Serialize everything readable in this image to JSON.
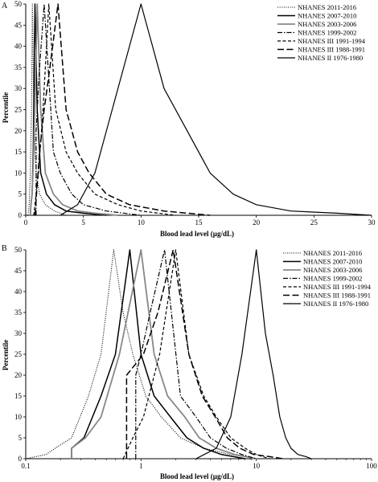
{
  "chart_data": [
    {
      "type": "line",
      "panel_label": "A",
      "xscale": "linear",
      "xlim": [
        0,
        30
      ],
      "ylim": [
        0,
        50
      ],
      "xticks": [
        0,
        5,
        10,
        15,
        20,
        25,
        30
      ],
      "yticks": [
        0,
        5,
        10,
        15,
        20,
        25,
        30,
        35,
        40,
        45,
        50
      ],
      "xtick_labels": [
        "0",
        "5",
        "10",
        "15",
        "20",
        "25",
        "30"
      ],
      "ytick_labels": [
        "0",
        "5",
        "10",
        "15",
        "20",
        "25",
        "30",
        "35",
        "40",
        "45",
        "50"
      ],
      "xlabel": "Blood lead level (µg/dL)",
      "ylabel": "Percentile",
      "legend_position": "top-right",
      "series": [
        {
          "name": "NHANES 2011-2016",
          "color": "#000000",
          "dash": "dotted",
          "width": 1.1,
          "x": [
            0.2,
            0.3,
            0.4,
            0.5,
            0.58,
            0.7,
            0.9,
            1.2,
            1.7,
            2.5,
            3.5
          ],
          "y": [
            0,
            2.5,
            10,
            25,
            50,
            25,
            10,
            5,
            2.5,
            1,
            0
          ]
        },
        {
          "name": "NHANES 2007-2010",
          "color": "#000000",
          "dash": "solid",
          "width": 1.5,
          "x": [
            0.4,
            0.45,
            0.55,
            0.65,
            0.8,
            1.0,
            1.3,
            1.8,
            2.5,
            3.5,
            5,
            7
          ],
          "y": [
            0,
            2.5,
            5,
            15,
            50,
            25,
            10,
            5,
            2.5,
            1,
            0.5,
            0
          ]
        },
        {
          "name": "NHANES 2003-2006",
          "color": "#888888",
          "dash": "solid",
          "width": 1.8,
          "x": [
            0.4,
            0.45,
            0.55,
            0.7,
            1.0,
            1.3,
            1.7,
            2.4,
            3.2,
            4.5,
            6,
            8
          ],
          "y": [
            0,
            2.5,
            5,
            15,
            50,
            25,
            10,
            5,
            2.5,
            1,
            0.5,
            0
          ]
        },
        {
          "name": "NHANES 1999-2002",
          "color": "#000000",
          "dash": "dashdot",
          "width": 1.2,
          "x": [
            0.9,
            0.9,
            1.0,
            1.2,
            1.6,
            2.4,
            3.0,
            4.0,
            5.0,
            7.0,
            10.0
          ],
          "y": [
            0,
            20,
            25,
            35,
            50,
            15,
            10,
            5,
            2.5,
            1,
            0
          ]
        },
        {
          "name": "NHANES III 1991-1994",
          "color": "#000000",
          "dash": "shortdash",
          "width": 1.2,
          "x": [
            0.7,
            0.9,
            1.1,
            1.5,
            2.0,
            2.6,
            3.5,
            4.5,
            6.0,
            8.0,
            10.0,
            13.0
          ],
          "y": [
            0,
            5,
            10,
            25,
            50,
            25,
            15,
            10,
            5,
            2.5,
            1,
            0
          ]
        },
        {
          "name": "NHANES III 1988-1991",
          "color": "#000000",
          "dash": "longdash",
          "width": 1.5,
          "x": [
            0.8,
            1.2,
            1.6,
            2.1,
            2.8,
            3.5,
            4.5,
            5.5,
            7.0,
            9.0,
            12.0,
            16.0
          ],
          "y": [
            0,
            15,
            25,
            35,
            50,
            25,
            15,
            10,
            5,
            2.5,
            1,
            0
          ]
        },
        {
          "name": "NHANES II 1976-1980",
          "color": "#000000",
          "dash": "solid",
          "width": 1.2,
          "x": [
            3.0,
            4.5,
            6.0,
            7.5,
            10.0,
            12.0,
            14.0,
            16.0,
            18.0,
            20.0,
            23.0,
            27.0,
            30.0
          ],
          "y": [
            0,
            2.5,
            10,
            25,
            50,
            30,
            20,
            10,
            5,
            2.5,
            1,
            0.5,
            0
          ]
        }
      ]
    },
    {
      "type": "line",
      "panel_label": "B",
      "xscale": "log",
      "xlim": [
        0.1,
        100
      ],
      "ylim": [
        0,
        50
      ],
      "xticks": [
        0.1,
        1,
        10,
        100
      ],
      "yticks": [
        0,
        5,
        10,
        15,
        20,
        25,
        30,
        35,
        40,
        45,
        50
      ],
      "xtick_labels": [
        "0.1",
        "1",
        "10",
        "100"
      ],
      "ytick_labels": [
        "0",
        "5",
        "10",
        "15",
        "20",
        "25",
        "30",
        "35",
        "40",
        "45",
        "50"
      ],
      "xlabel": "Blood lead level (µg/dL)",
      "ylabel": "Percentile",
      "legend_position": "top-right",
      "series": [
        {
          "name": "NHANES 2011-2016",
          "color": "#000000",
          "dash": "dotted",
          "width": 1.1,
          "x": [
            0.1,
            0.15,
            0.18,
            0.25,
            0.35,
            0.45,
            0.58,
            0.7,
            0.85,
            1.1,
            1.5,
            2.2,
            3.5,
            6.0,
            10.0
          ],
          "y": [
            0,
            1,
            2.5,
            5,
            15,
            25,
            50,
            35,
            25,
            15,
            10,
            5,
            2.5,
            1,
            0
          ]
        },
        {
          "name": "NHANES 2007-2010",
          "color": "#000000",
          "dash": "solid",
          "width": 1.5,
          "x": [
            0.25,
            0.25,
            0.32,
            0.45,
            0.6,
            0.8,
            1.0,
            1.3,
            1.8,
            2.5,
            3.5,
            5.0,
            8.0
          ],
          "y": [
            0,
            2.5,
            5,
            15,
            25,
            50,
            25,
            15,
            10,
            5,
            2.5,
            1,
            0
          ]
        },
        {
          "name": "NHANES 2003-2006",
          "color": "#888888",
          "dash": "solid",
          "width": 1.8,
          "x": [
            0.25,
            0.25,
            0.33,
            0.45,
            0.65,
            1.0,
            1.3,
            1.7,
            2.4,
            3.2,
            4.5,
            6.5,
            10.0
          ],
          "y": [
            0,
            2.5,
            5,
            10,
            25,
            50,
            25,
            15,
            10,
            5,
            2.5,
            1,
            0
          ]
        },
        {
          "name": "NHANES 1999-2002",
          "color": "#000000",
          "dash": "dashdot",
          "width": 1.2,
          "x": [
            0.9,
            0.9,
            1.0,
            1.2,
            1.6,
            2.2,
            3.0,
            4.0,
            5.5,
            7.5,
            10.0
          ],
          "y": [
            0,
            20,
            25,
            35,
            50,
            15,
            10,
            5,
            2.5,
            1,
            0
          ]
        },
        {
          "name": "NHANES III 1991-1994",
          "color": "#000000",
          "dash": "shortdash",
          "width": 1.2,
          "x": [
            0.7,
            0.85,
            1.05,
            1.45,
            2.0,
            2.6,
            3.5,
            4.5,
            6.0,
            8.0,
            10.0,
            13.0
          ],
          "y": [
            0,
            5,
            10,
            25,
            50,
            25,
            15,
            10,
            5,
            2.5,
            1,
            0
          ]
        },
        {
          "name": "NHANES III 1988-1991",
          "color": "#000000",
          "dash": "longdash",
          "width": 1.5,
          "x": [
            0.75,
            0.75,
            1.05,
            1.4,
            1.9,
            2.6,
            3.4,
            4.4,
            5.6,
            7.2,
            9.5,
            13.0,
            17.0
          ],
          "y": [
            0,
            20,
            25,
            35,
            50,
            25,
            15,
            10,
            5,
            2.5,
            1,
            0.5,
            0
          ]
        },
        {
          "name": "NHANES II 1976-1980",
          "color": "#000000",
          "dash": "solid",
          "width": 1.2,
          "x": [
            3.0,
            4.5,
            6.0,
            7.5,
            10.0,
            12.0,
            14.0,
            16.0,
            18.0,
            20.0,
            23.0,
            27.0,
            30.0
          ],
          "y": [
            0,
            2.5,
            10,
            25,
            50,
            30,
            20,
            10,
            5,
            2.5,
            1,
            0.5,
            0
          ]
        }
      ]
    }
  ]
}
